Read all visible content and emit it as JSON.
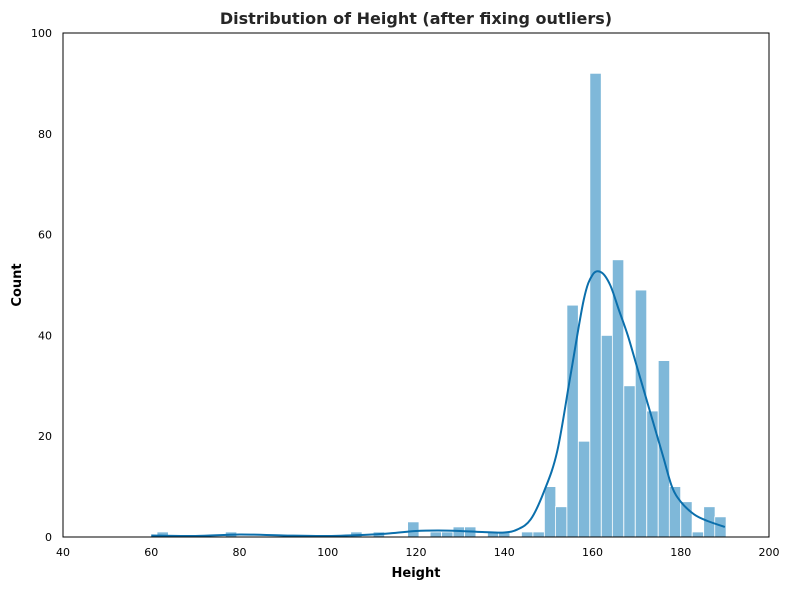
{
  "chart_data": {
    "type": "bar",
    "title": "Distribution of Height (after fixing outliers)",
    "xlabel": "Height",
    "ylabel": "Count",
    "xlim": [
      40,
      200
    ],
    "ylim": [
      0,
      100
    ],
    "xticks": [
      "40",
      "60",
      "80",
      "100",
      "120",
      "140",
      "160",
      "180",
      "200"
    ],
    "yticks": [
      "0",
      "20",
      "40",
      "60",
      "80",
      "100"
    ],
    "bin_width": 2.58,
    "bins": [
      {
        "x0": 60.0,
        "count": 0
      },
      {
        "x0": 61.3,
        "count": 1
      },
      {
        "x0": 76.8,
        "count": 1
      },
      {
        "x0": 105.2,
        "count": 1
      },
      {
        "x0": 110.3,
        "count": 1
      },
      {
        "x0": 118.1,
        "count": 3
      },
      {
        "x0": 123.2,
        "count": 1
      },
      {
        "x0": 125.8,
        "count": 1
      },
      {
        "x0": 128.4,
        "count": 2
      },
      {
        "x0": 131.0,
        "count": 2
      },
      {
        "x0": 136.2,
        "count": 1
      },
      {
        "x0": 138.7,
        "count": 1
      },
      {
        "x0": 143.9,
        "count": 1
      },
      {
        "x0": 146.5,
        "count": 1
      },
      {
        "x0": 149.1,
        "count": 10
      },
      {
        "x0": 151.6,
        "count": 6
      },
      {
        "x0": 154.2,
        "count": 46
      },
      {
        "x0": 156.8,
        "count": 19
      },
      {
        "x0": 159.4,
        "count": 92
      },
      {
        "x0": 162.0,
        "count": 40
      },
      {
        "x0": 164.5,
        "count": 55
      },
      {
        "x0": 167.1,
        "count": 30
      },
      {
        "x0": 169.7,
        "count": 49
      },
      {
        "x0": 172.3,
        "count": 25
      },
      {
        "x0": 174.9,
        "count": 35
      },
      {
        "x0": 177.4,
        "count": 10
      },
      {
        "x0": 180.0,
        "count": 7
      },
      {
        "x0": 182.6,
        "count": 1
      },
      {
        "x0": 185.2,
        "count": 6
      },
      {
        "x0": 187.7,
        "count": 4
      }
    ],
    "kde": {
      "x": [
        60,
        70,
        80,
        90,
        100,
        110,
        115,
        120,
        125,
        130,
        135,
        140,
        143,
        146,
        149,
        152,
        155,
        158,
        160,
        162,
        164,
        166,
        168,
        170,
        172,
        174,
        176,
        178,
        180,
        183,
        186,
        190
      ],
      "y": [
        0.3,
        0.2,
        0.5,
        0.3,
        0.2,
        0.5,
        0.8,
        1.2,
        1.3,
        1.2,
        1.0,
        0.9,
        1.5,
        3.5,
        9,
        17,
        32,
        47,
        52,
        52.5,
        50,
        45,
        40,
        34,
        28,
        22,
        16,
        10,
        7,
        4.5,
        3.2,
        2.0
      ]
    },
    "grid": false,
    "legend": "none",
    "bar_color": "#7fb8d9",
    "bar_edge": "#ffffff",
    "line_color": "#0b6fac"
  }
}
